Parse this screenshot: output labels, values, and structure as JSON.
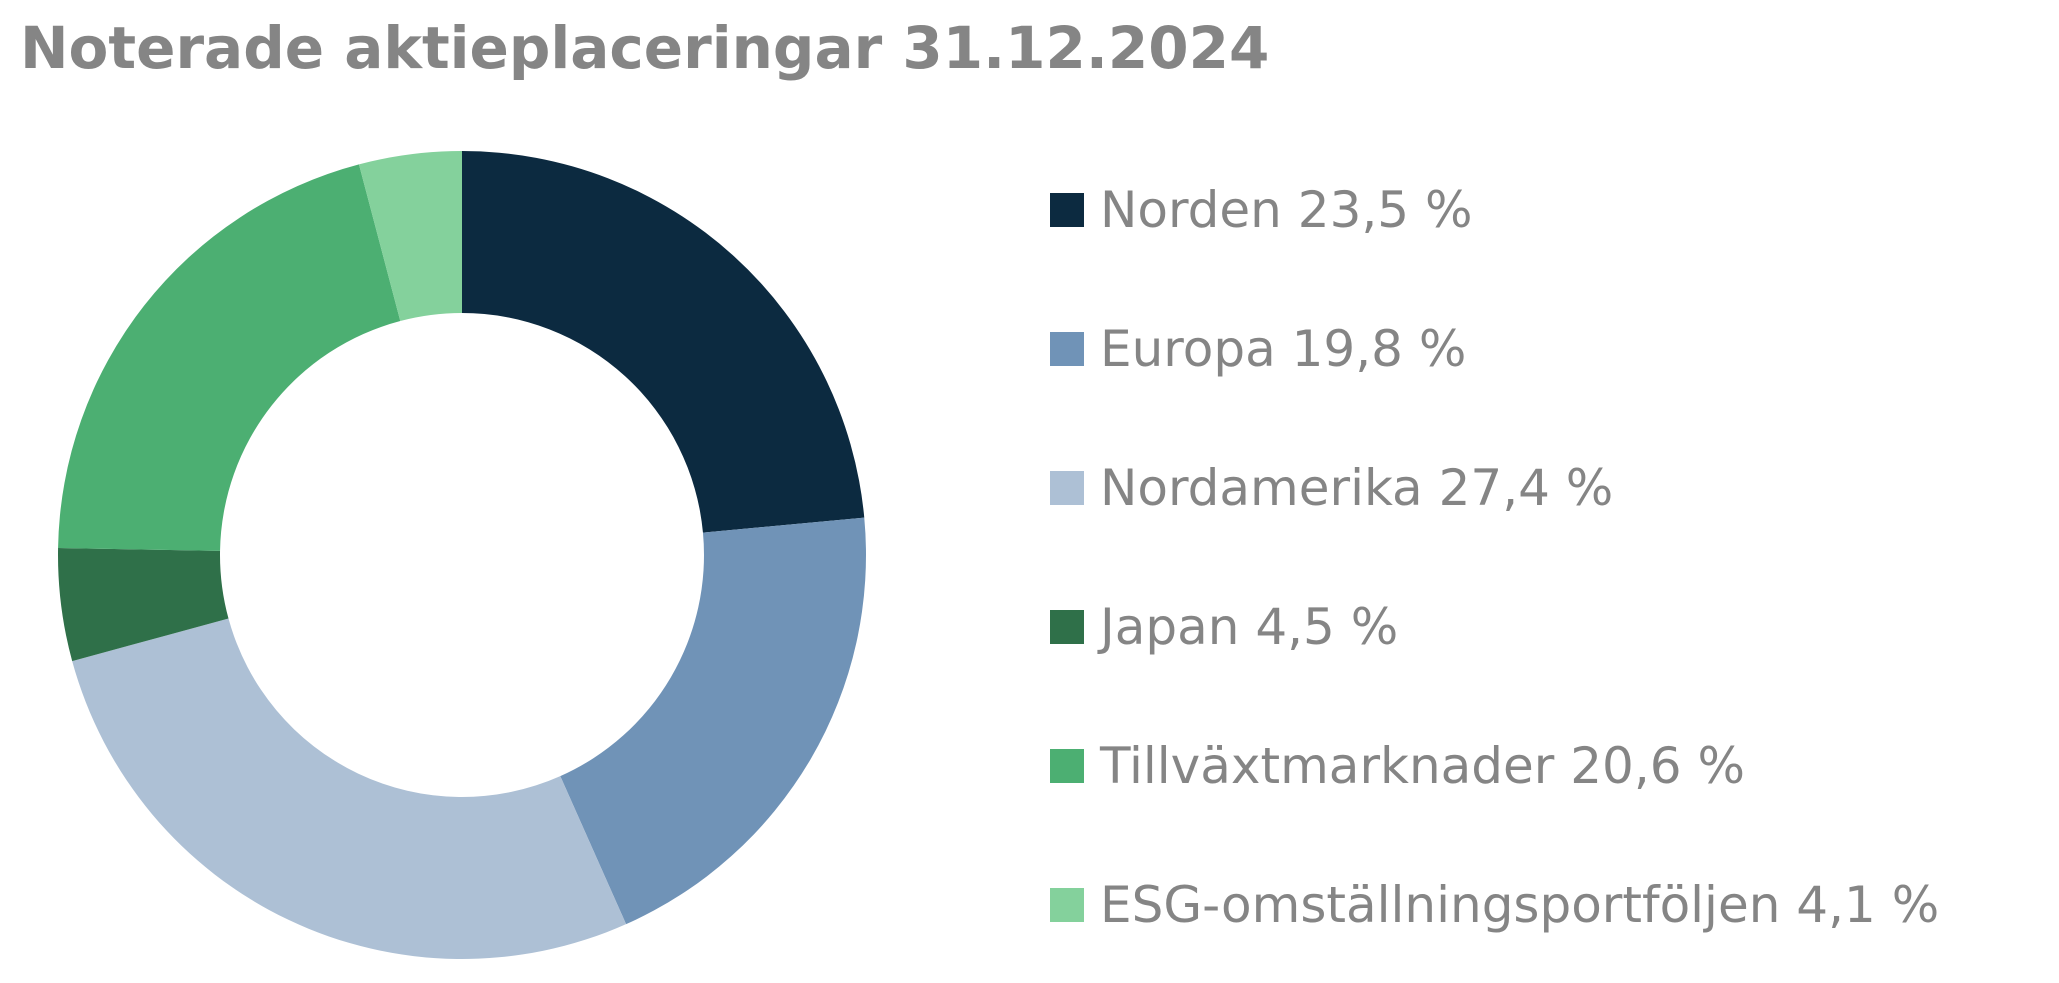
{
  "chart_data": {
    "type": "pie",
    "title": "Noterade aktieplaceringar 31.12.2024",
    "slices": [
      {
        "label": "Norden 23,5 %",
        "value": 23.5,
        "color": "#0c2a40"
      },
      {
        "label": "Europa 19,8 %",
        "value": 19.8,
        "color": "#7093b7"
      },
      {
        "label": "Nordamerika 27,4 %",
        "value": 27.4,
        "color": "#adc0d5"
      },
      {
        "label": "Japan 4,5 %",
        "value": 4.5,
        "color": "#2f7049"
      },
      {
        "label": "Tillväxtmarknader 20,6 %",
        "value": 20.6,
        "color": "#4caf72"
      },
      {
        "label": "ESG-omställningsportföljen 4,1 %",
        "value": 4.1,
        "color": "#84d19c"
      }
    ],
    "legend": "right"
  }
}
